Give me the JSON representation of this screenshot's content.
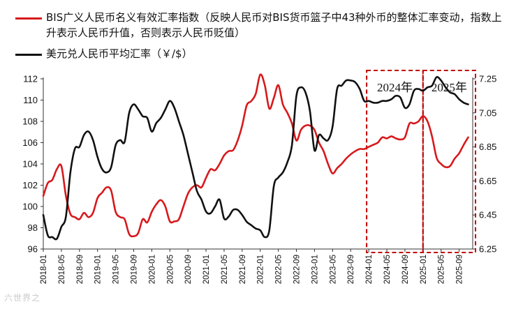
{
  "legend": {
    "bis_label": "BIS广义人民币名义有效汇率指数（反映人民币对BIS货币篮子中43种外币的整体汇率变动，指数上升表示人民币升值，否则表示人民币贬值）",
    "usd_label": "美元兑人民币平均汇率（￥/$）"
  },
  "watermark": "六世界之",
  "colors": {
    "bis": "#d7191c",
    "usd": "#111111",
    "box": "#c00000",
    "axis": "#333333"
  },
  "chart_data": {
    "type": "line",
    "left_axis": {
      "min": 96,
      "max": 112,
      "ticks": [
        "96",
        "98",
        "100",
        "102",
        "104",
        "106",
        "108",
        "110",
        "112"
      ]
    },
    "right_axis": {
      "min": 6.25,
      "max": 7.25,
      "ticks": [
        "6.25",
        "6.45",
        "6.65",
        "6.85",
        "7.05",
        "7.25"
      ]
    },
    "x_ticks": [
      "2018-01",
      "2018-05",
      "2018-09",
      "2019-01",
      "2019-05",
      "2019-09",
      "2020-01",
      "2020-05",
      "2020-09",
      "2021-01",
      "2021-05",
      "2021-09",
      "2022-01",
      "2022-05",
      "2022-09",
      "2023-01",
      "2023-05",
      "2023-09",
      "2024-01",
      "2024-05",
      "2024-09",
      "2025-01",
      "2025-05",
      "2025-09"
    ],
    "highlight_boxes": [
      {
        "label": "2024年",
        "from": "2024-01",
        "to": "2025-01"
      },
      {
        "label": "2025年",
        "from": "2025-01",
        "to": "2025-12"
      }
    ],
    "series": [
      {
        "name": "BIS广义人民币名义有效汇率指数",
        "axis": "left",
        "values": [
          [
            "2018-01",
            101.0
          ],
          [
            "2018-02",
            102.2
          ],
          [
            "2018-03",
            102.5
          ],
          [
            "2018-04",
            103.5
          ],
          [
            "2018-05",
            103.8
          ],
          [
            "2018-06",
            101.0
          ],
          [
            "2018-07",
            99.3
          ],
          [
            "2018-08",
            99.0
          ],
          [
            "2018-09",
            98.8
          ],
          [
            "2018-10",
            99.4
          ],
          [
            "2018-11",
            99.0
          ],
          [
            "2018-12",
            99.4
          ],
          [
            "2019-01",
            100.8
          ],
          [
            "2019-02",
            101.3
          ],
          [
            "2019-03",
            101.8
          ],
          [
            "2019-04",
            101.5
          ],
          [
            "2019-05",
            99.5
          ],
          [
            "2019-06",
            99.0
          ],
          [
            "2019-07",
            98.8
          ],
          [
            "2019-08",
            97.4
          ],
          [
            "2019-09",
            97.2
          ],
          [
            "2019-10",
            97.5
          ],
          [
            "2019-11",
            98.8
          ],
          [
            "2019-12",
            98.5
          ],
          [
            "2020-01",
            99.5
          ],
          [
            "2020-02",
            100.2
          ],
          [
            "2020-03",
            100.6
          ],
          [
            "2020-04",
            100.0
          ],
          [
            "2020-05",
            98.6
          ],
          [
            "2020-06",
            98.6
          ],
          [
            "2020-07",
            98.8
          ],
          [
            "2020-08",
            100.0
          ],
          [
            "2020-09",
            101.2
          ],
          [
            "2020-10",
            101.8
          ],
          [
            "2020-11",
            102.0
          ],
          [
            "2020-12",
            101.8
          ],
          [
            "2021-01",
            102.7
          ],
          [
            "2021-02",
            103.5
          ],
          [
            "2021-03",
            103.4
          ],
          [
            "2021-04",
            104.0
          ],
          [
            "2021-05",
            104.8
          ],
          [
            "2021-06",
            105.2
          ],
          [
            "2021-07",
            105.3
          ],
          [
            "2021-08",
            106.2
          ],
          [
            "2021-09",
            107.6
          ],
          [
            "2021-10",
            109.5
          ],
          [
            "2021-11",
            109.9
          ],
          [
            "2021-12",
            110.6
          ],
          [
            "2022-01",
            112.4
          ],
          [
            "2022-02",
            111.4
          ],
          [
            "2022-03",
            109.2
          ],
          [
            "2022-04",
            110.2
          ],
          [
            "2022-05",
            111.4
          ],
          [
            "2022-06",
            109.6
          ],
          [
            "2022-07",
            108.8
          ],
          [
            "2022-08",
            107.8
          ],
          [
            "2022-09",
            106.2
          ],
          [
            "2022-10",
            107.2
          ],
          [
            "2022-11",
            107.6
          ],
          [
            "2022-12",
            107.6
          ],
          [
            "2023-01",
            107.2
          ],
          [
            "2023-02",
            106.0
          ],
          [
            "2023-03",
            105.2
          ],
          [
            "2023-04",
            104.0
          ],
          [
            "2023-05",
            103.1
          ],
          [
            "2023-06",
            103.6
          ],
          [
            "2023-07",
            104.0
          ],
          [
            "2023-08",
            104.5
          ],
          [
            "2023-09",
            104.9
          ],
          [
            "2023-10",
            105.2
          ],
          [
            "2023-11",
            105.4
          ],
          [
            "2023-12",
            105.4
          ],
          [
            "2024-01",
            105.6
          ],
          [
            "2024-02",
            105.8
          ],
          [
            "2024-03",
            106.0
          ],
          [
            "2024-04",
            106.5
          ],
          [
            "2024-05",
            106.4
          ],
          [
            "2024-06",
            106.6
          ],
          [
            "2024-07",
            106.4
          ],
          [
            "2024-08",
            106.3
          ],
          [
            "2024-09",
            106.5
          ],
          [
            "2024-10",
            107.8
          ],
          [
            "2024-11",
            107.8
          ],
          [
            "2024-12",
            108.0
          ],
          [
            "2025-01",
            108.5
          ],
          [
            "2025-02",
            108.0
          ],
          [
            "2025-03",
            106.6
          ],
          [
            "2025-04",
            104.6
          ],
          [
            "2025-05",
            104.0
          ],
          [
            "2025-06",
            103.7
          ],
          [
            "2025-07",
            103.8
          ],
          [
            "2025-08",
            104.5
          ],
          [
            "2025-09",
            105.0
          ],
          [
            "2025-10",
            105.8
          ],
          [
            "2025-11",
            106.5
          ]
        ]
      },
      {
        "name": "美元兑人民币平均汇率",
        "axis": "right",
        "values": [
          [
            "2018-01",
            6.45
          ],
          [
            "2018-02",
            6.33
          ],
          [
            "2018-03",
            6.32
          ],
          [
            "2018-04",
            6.31
          ],
          [
            "2018-05",
            6.38
          ],
          [
            "2018-06",
            6.44
          ],
          [
            "2018-07",
            6.7
          ],
          [
            "2018-08",
            6.84
          ],
          [
            "2018-09",
            6.85
          ],
          [
            "2018-10",
            6.92
          ],
          [
            "2018-11",
            6.94
          ],
          [
            "2018-12",
            6.89
          ],
          [
            "2019-01",
            6.79
          ],
          [
            "2019-02",
            6.72
          ],
          [
            "2019-03",
            6.7
          ],
          [
            "2019-04",
            6.73
          ],
          [
            "2019-05",
            6.86
          ],
          [
            "2019-06",
            6.89
          ],
          [
            "2019-07",
            6.88
          ],
          [
            "2019-08",
            7.05
          ],
          [
            "2019-09",
            7.1
          ],
          [
            "2019-10",
            7.07
          ],
          [
            "2019-11",
            7.03
          ],
          [
            "2019-12",
            7.02
          ],
          [
            "2020-01",
            6.94
          ],
          [
            "2020-02",
            6.99
          ],
          [
            "2020-03",
            7.02
          ],
          [
            "2020-04",
            7.07
          ],
          [
            "2020-05",
            7.12
          ],
          [
            "2020-06",
            7.08
          ],
          [
            "2020-07",
            7.0
          ],
          [
            "2020-08",
            6.92
          ],
          [
            "2020-09",
            6.81
          ],
          [
            "2020-10",
            6.7
          ],
          [
            "2020-11",
            6.59
          ],
          [
            "2020-12",
            6.54
          ],
          [
            "2021-01",
            6.47
          ],
          [
            "2021-02",
            6.46
          ],
          [
            "2021-03",
            6.5
          ],
          [
            "2021-04",
            6.54
          ],
          [
            "2021-05",
            6.43
          ],
          [
            "2021-06",
            6.44
          ],
          [
            "2021-07",
            6.48
          ],
          [
            "2021-08",
            6.48
          ],
          [
            "2021-09",
            6.45
          ],
          [
            "2021-10",
            6.41
          ],
          [
            "2021-11",
            6.39
          ],
          [
            "2021-12",
            6.37
          ],
          [
            "2022-01",
            6.36
          ],
          [
            "2022-02",
            6.32
          ],
          [
            "2022-03",
            6.36
          ],
          [
            "2022-04",
            6.62
          ],
          [
            "2022-05",
            6.67
          ],
          [
            "2022-06",
            6.7
          ],
          [
            "2022-07",
            6.76
          ],
          [
            "2022-08",
            6.86
          ],
          [
            "2022-09",
            7.15
          ],
          [
            "2022-10",
            7.2
          ],
          [
            "2022-11",
            7.17
          ],
          [
            "2022-12",
            7.06
          ],
          [
            "2023-01",
            6.83
          ],
          [
            "2023-02",
            6.92
          ],
          [
            "2023-03",
            6.9
          ],
          [
            "2023-04",
            6.89
          ],
          [
            "2023-05",
            6.97
          ],
          [
            "2023-06",
            7.19
          ],
          [
            "2023-07",
            7.21
          ],
          [
            "2023-08",
            7.24
          ],
          [
            "2023-09",
            7.24
          ],
          [
            "2023-10",
            7.23
          ],
          [
            "2023-11",
            7.19
          ],
          [
            "2023-12",
            7.12
          ],
          [
            "2024-01",
            7.12
          ],
          [
            "2024-02",
            7.11
          ],
          [
            "2024-03",
            7.11
          ],
          [
            "2024-04",
            7.12
          ],
          [
            "2024-05",
            7.12
          ],
          [
            "2024-06",
            7.13
          ],
          [
            "2024-07",
            7.15
          ],
          [
            "2024-08",
            7.14
          ],
          [
            "2024-09",
            7.08
          ],
          [
            "2024-10",
            7.1
          ],
          [
            "2024-11",
            7.18
          ],
          [
            "2024-12",
            7.19
          ],
          [
            "2025-01",
            7.18
          ],
          [
            "2025-02",
            7.2
          ],
          [
            "2025-03",
            7.21
          ],
          [
            "2025-04",
            7.26
          ],
          [
            "2025-05",
            7.24
          ],
          [
            "2025-06",
            7.2
          ],
          [
            "2025-07",
            7.17
          ],
          [
            "2025-08",
            7.16
          ],
          [
            "2025-09",
            7.13
          ],
          [
            "2025-10",
            7.11
          ],
          [
            "2025-11",
            7.1
          ]
        ]
      }
    ]
  }
}
